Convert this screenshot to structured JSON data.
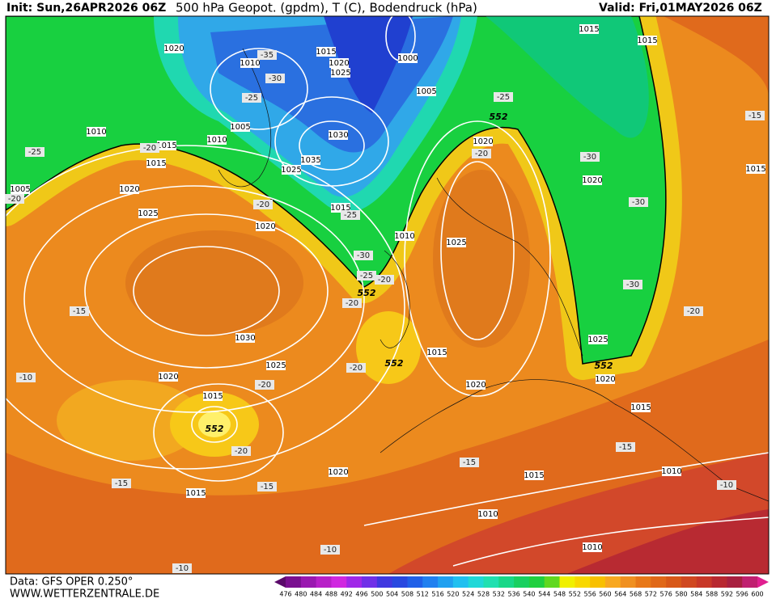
{
  "header": {
    "init": "Init: Sun,26APR2026 06Z",
    "title": "500 hPa Geopot. (gpdm), T (C), Bodendruck (hPa)",
    "valid": "Valid: Fri,01MAY2026 06Z"
  },
  "footer": {
    "source": "Data: GFS OPER 0.250°",
    "site": "WWW.WETTERZENTRALE.DE"
  },
  "scale": {
    "labels": [
      476,
      480,
      484,
      488,
      492,
      496,
      500,
      504,
      508,
      512,
      516,
      520,
      524,
      528,
      532,
      536,
      540,
      544,
      548,
      552,
      556,
      560,
      564,
      568,
      572,
      576,
      580,
      584,
      588,
      592,
      596,
      600
    ]
  },
  "map": {
    "isobar_labels": [
      1020,
      1015,
      1010,
      1020,
      1025,
      1000,
      1005,
      1015,
      1015,
      1010,
      1005,
      1010,
      1030,
      1035,
      1025,
      1015,
      1015,
      1005,
      1020,
      1025,
      1020,
      1015,
      1010,
      1020,
      1025,
      1020,
      1015,
      1030,
      1025,
      1015,
      1020,
      1015,
      1020,
      1025,
      1020,
      1015,
      1020,
      1015,
      1015,
      1010,
      1010,
      1010
    ],
    "height_labels": [
      552,
      552,
      552,
      552,
      552
    ],
    "temperature_labels": [
      -25,
      -20,
      -35,
      -30,
      -25,
      -20,
      -20,
      -25,
      -30,
      -25,
      -20,
      -20,
      -25,
      -30,
      -30,
      -30,
      -20,
      -15,
      -15,
      -10,
      -20,
      -20,
      -20,
      -15,
      -15,
      -15,
      -15,
      -10,
      -10,
      -10,
      -20
    ]
  }
}
